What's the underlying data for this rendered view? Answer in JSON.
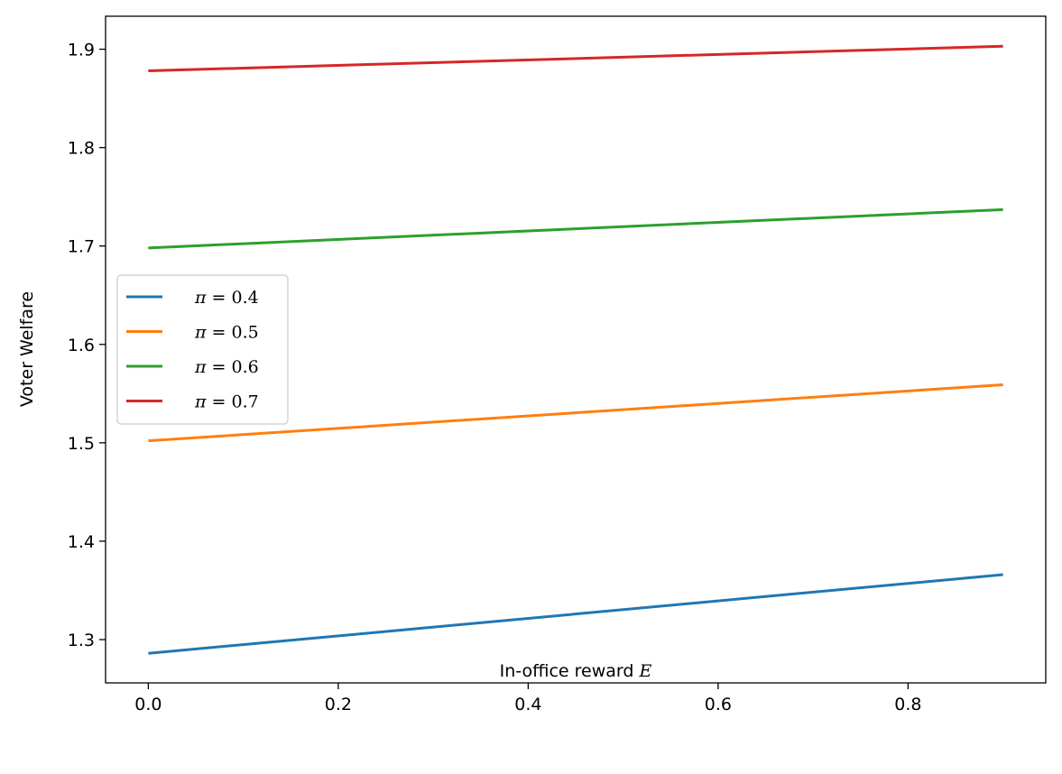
{
  "chart_data": {
    "type": "line",
    "title": "",
    "xlabel": "In-office reward E",
    "xlabel_parts": {
      "text": "In-office reward ",
      "symbol": "E"
    },
    "ylabel": "Voter Welfare",
    "xlim": [
      -0.045,
      0.945
    ],
    "ylim": [
      1.256,
      1.9335
    ],
    "xticks": [
      0.0,
      0.2,
      0.4,
      0.6,
      0.8
    ],
    "xtick_labels": [
      "0.0",
      "0.2",
      "0.4",
      "0.6",
      "0.8"
    ],
    "yticks": [
      1.3,
      1.4,
      1.5,
      1.6,
      1.7,
      1.8,
      1.9
    ],
    "ytick_labels": [
      "1.3",
      "1.4",
      "1.5",
      "1.6",
      "1.7",
      "1.8",
      "1.9"
    ],
    "grid": false,
    "legend_position": "center-left",
    "series": [
      {
        "name": "π = 0.4",
        "name_parts": {
          "symbol": "π",
          "rest": " = 0.4"
        },
        "color": "#1f77b4",
        "x": [
          0.0,
          0.9
        ],
        "y": [
          1.286,
          1.366
        ]
      },
      {
        "name": "π = 0.5",
        "name_parts": {
          "symbol": "π",
          "rest": " = 0.5"
        },
        "color": "#ff7f0e",
        "x": [
          0.0,
          0.9
        ],
        "y": [
          1.502,
          1.559
        ]
      },
      {
        "name": "π = 0.6",
        "name_parts": {
          "symbol": "π",
          "rest": " = 0.6"
        },
        "color": "#2ca02c",
        "x": [
          0.0,
          0.9
        ],
        "y": [
          1.698,
          1.737
        ]
      },
      {
        "name": "π = 0.7",
        "name_parts": {
          "symbol": "π",
          "rest": " = 0.7"
        },
        "color": "#d62728",
        "x": [
          0.0,
          0.9
        ],
        "y": [
          1.878,
          1.903
        ]
      }
    ]
  }
}
